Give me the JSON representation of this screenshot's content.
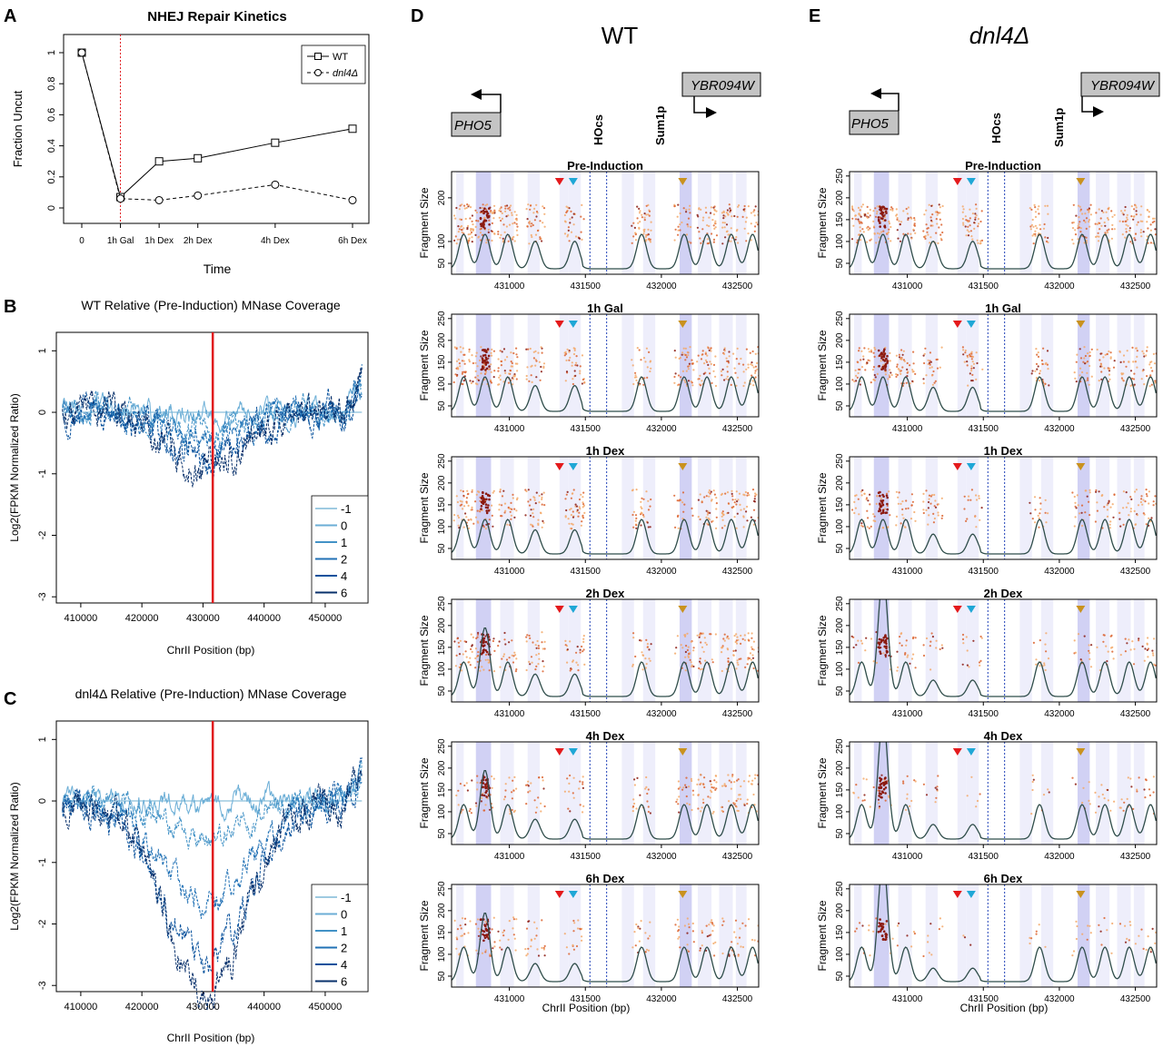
{
  "colors": {
    "wt_line": "#000000",
    "red_line": "#e0161a",
    "blue_dotted": "#1d3fb8",
    "density_curve": "#2f4d4a",
    "nucleosome_band_dark": "#c9c9f2",
    "nucleosome_band_light": "#ebebfa",
    "point_light": "#f3a869",
    "point_mid": "#dc6430",
    "point_dark": "#8b1a10",
    "triangle_red": "#e41a1c",
    "triangle_cyan": "#1fa7d6",
    "triangle_gold": "#c9921f",
    "series_blues": [
      "#9ecae1",
      "#6baed6",
      "#4292c6",
      "#2171b5",
      "#08519c",
      "#08306b"
    ]
  },
  "panel_letters": [
    "A",
    "B",
    "C",
    "D",
    "E"
  ],
  "chart_data": [
    {
      "id": "A",
      "type": "line",
      "title": "NHEJ Repair Kinetics",
      "xlabel": "Time",
      "ylabel": "Fraction Uncut",
      "categories": [
        "0",
        "1h Gal",
        "1h Dex",
        "2h Dex",
        "4h Dex",
        "6h Dex"
      ],
      "x": [
        0,
        1,
        2,
        3,
        5,
        7
      ],
      "ylim": [
        0,
        1
      ],
      "yticks": [
        "0",
        "0.2",
        "0.4",
        "0.6",
        "0.8",
        "1"
      ],
      "vline_at": "1h Gal",
      "legend_position": "top-right",
      "series": [
        {
          "name": "WT",
          "marker": "square",
          "style": "solid",
          "values": [
            1.0,
            0.07,
            0.3,
            0.32,
            0.42,
            0.51
          ]
        },
        {
          "name": "dnl4Δ",
          "marker": "circle",
          "style": "dashed",
          "values": [
            1.0,
            0.06,
            0.05,
            0.08,
            0.15,
            0.05
          ]
        }
      ]
    },
    {
      "id": "B",
      "type": "line",
      "title": "WT Relative (Pre-Induction) MNase Coverage",
      "xlabel": "ChrII Position (bp)",
      "ylabel": "Log2(FPKM Normalized Ratio)",
      "xlim": [
        406000,
        457000
      ],
      "xticks": [
        "410000",
        "420000",
        "430000",
        "440000",
        "450000"
      ],
      "ylim": [
        -3.1,
        1.3
      ],
      "yticks": [
        "-3",
        "-2",
        "-1",
        "0",
        "1"
      ],
      "vline_at": 431600,
      "legend_position": "bottom-right",
      "legend": [
        "-1",
        "0",
        "1",
        "2",
        "4",
        "6"
      ],
      "dip_depth": [
        0,
        0.05,
        0.35,
        0.55,
        0.85,
        0.9
      ],
      "dip_halfwidth": [
        1,
        3000,
        7000,
        8000,
        9000,
        9000
      ]
    },
    {
      "id": "C",
      "type": "line",
      "title": "dnl4Δ Relative (Pre-Induction) MNase Coverage",
      "xlabel": "ChrII Position (bp)",
      "ylabel": "Log2(FPKM Normalized Ratio)",
      "xlim": [
        406000,
        457000
      ],
      "xticks": [
        "410000",
        "420000",
        "430000",
        "440000",
        "450000"
      ],
      "ylim": [
        -3.1,
        1.3
      ],
      "yticks": [
        "-3",
        "-2",
        "-1",
        "0",
        "1"
      ],
      "vline_at": 431600,
      "legend_position": "bottom-right",
      "legend": [
        "-1",
        "0",
        "1",
        "2",
        "4",
        "6"
      ],
      "dip_depth": [
        0,
        0.1,
        0.6,
        1.6,
        2.5,
        3.0
      ],
      "dip_halfwidth": [
        1,
        4000,
        9000,
        11000,
        11000,
        10000
      ]
    }
  ],
  "panels_DE": {
    "xlim": [
      430620,
      432640
    ],
    "xticks": [
      "431000",
      "431500",
      "432000",
      "432500"
    ],
    "xlabel": "ChrII Position (bp)",
    "ylabel": "Fragment Size",
    "hocs_lines": [
      431530,
      431640
    ],
    "triangles": [
      {
        "color": "red",
        "x": 431330
      },
      {
        "color": "cyan",
        "x": 431420
      },
      {
        "color": "gold",
        "x": 432140
      }
    ],
    "D": {
      "heading": "WT",
      "gene_left": "PHO5",
      "gene_right": "YBR094W",
      "site_labels": [
        "HOcs",
        "Sum1p"
      ],
      "rows": [
        {
          "title": "Pre-Induction",
          "yticks": [
            "50",
            "100",
            "200"
          ]
        },
        {
          "title": "1h Gal",
          "yticks": [
            "50",
            "100",
            "150",
            "200",
            "250"
          ]
        },
        {
          "title": "1h Dex",
          "yticks": [
            "50",
            "100",
            "150",
            "200",
            "250"
          ]
        },
        {
          "title": "2h Dex",
          "yticks": [
            "50",
            "100",
            "150",
            "200",
            "250"
          ]
        },
        {
          "title": "4h Dex",
          "yticks": [
            "50",
            "100",
            "150",
            "200",
            "250"
          ]
        },
        {
          "title": "6h Dex",
          "yticks": [
            "50",
            "100",
            "150",
            "200",
            "250"
          ]
        }
      ]
    },
    "E": {
      "heading": "dnl4Δ",
      "gene_left": "PHO5",
      "gene_right": "YBR094W",
      "site_labels": [
        "HOcs",
        "Sum1p"
      ],
      "rows": [
        {
          "title": "Pre-Induction",
          "yticks": [
            "50",
            "100",
            "150",
            "200",
            "250"
          ]
        },
        {
          "title": "1h Gal",
          "yticks": [
            "50",
            "100",
            "150",
            "200",
            "250"
          ]
        },
        {
          "title": "1h Dex",
          "yticks": [
            "50",
            "100",
            "150",
            "200",
            "250"
          ]
        },
        {
          "title": "2h Dex",
          "yticks": [
            "50",
            "100",
            "150",
            "200",
            "250"
          ]
        },
        {
          "title": "4h Dex",
          "yticks": [
            "50",
            "100",
            "150",
            "200",
            "250"
          ]
        },
        {
          "title": "6h Dex",
          "yticks": [
            "50",
            "100",
            "150",
            "200",
            "250"
          ]
        }
      ]
    }
  }
}
